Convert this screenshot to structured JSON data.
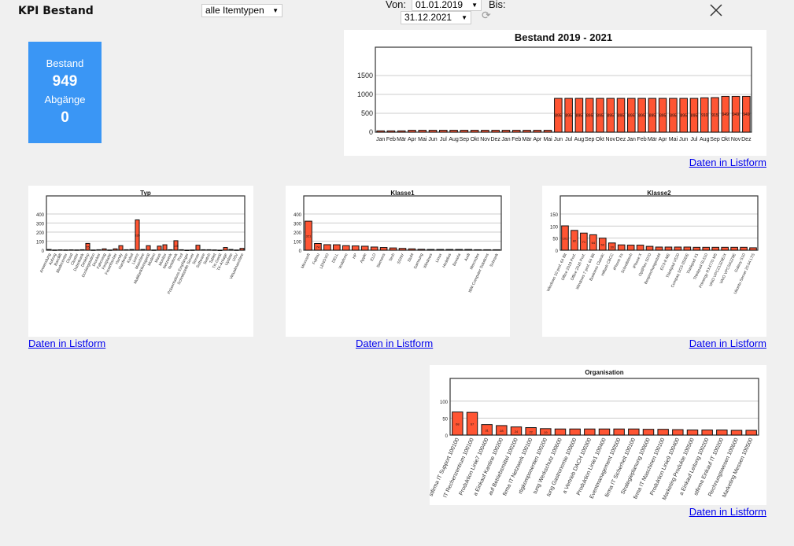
{
  "header": {
    "title": "KPI Bestand",
    "item_type_select": "alle Itemtypen",
    "from_label": "Von:",
    "from_date": "01.01.2019",
    "to_label": "Bis:",
    "to_date": "31.12.2021",
    "refresh_icon": "refresh-icon",
    "close_icon": "close-icon"
  },
  "kpi": {
    "stock_label": "Bestand",
    "stock_value": "949",
    "disposals_label": "Abgänge",
    "disposals_value": "0"
  },
  "links": {
    "list_form": "Daten in Listform"
  },
  "colors": {
    "bar": "#ff5533",
    "tile": "#3a96f5"
  },
  "chart_data": [
    {
      "id": "bestand",
      "type": "bar",
      "title": "Bestand 2019 - 2021",
      "ylim": [
        0,
        2250
      ],
      "yticks": [
        0,
        500,
        1000,
        1500
      ],
      "categories": [
        "Jan",
        "Feb",
        "Mär",
        "Apr",
        "Mai",
        "Jun",
        "Jul",
        "Aug",
        "Sep",
        "Okt",
        "Nov",
        "Dez",
        "Jan",
        "Feb",
        "Mär",
        "Apr",
        "Mai",
        "Jun",
        "Jul",
        "Aug",
        "Sep",
        "Okt",
        "Nov",
        "Dez",
        "Jan",
        "Feb",
        "Mär",
        "Apr",
        "Mai",
        "Jun",
        "Jul",
        "Aug",
        "Sep",
        "Okt",
        "Nov",
        "Dez"
      ],
      "values": [
        35,
        35,
        35,
        50,
        50,
        50,
        50,
        50,
        50,
        50,
        50,
        50,
        50,
        50,
        50,
        50,
        50,
        895,
        895,
        895,
        895,
        895,
        895,
        895,
        895,
        895,
        895,
        895,
        895,
        895,
        895,
        910,
        915,
        949,
        949,
        949
      ],
      "grid": true
    },
    {
      "id": "typ",
      "type": "bar",
      "title": "Typ",
      "ylim": [
        0,
        600
      ],
      "yticks": [
        0,
        100,
        200,
        300,
        400
      ],
      "categories": [
        "Anwendung",
        "Aufzug",
        "Bandlift",
        "Bladecenter",
        "Cloud",
        "Cluster",
        "Datenbank",
        "Desktop",
        "Dockingstation",
        "Drucker",
        "Fahrzeug",
        "Festplatte",
        "Feuerlöscher",
        "Handy",
        "Hardware",
        "Kabel",
        "Lizenz",
        "Maschine",
        "Multifunktionsgerät",
        "Modem",
        "Maus",
        "Monitor",
        "Netzwerk",
        "Notebook",
        "Pool",
        "Präsentations Empfänger",
        "Schnittstelle Server",
        "Server",
        "Software",
        "Switch",
        "Tablet",
        "TK-Gerät",
        "TK-Anlage",
        "Update",
        "USV",
        "Virtualmaschine"
      ],
      "values": [
        8,
        2,
        4,
        3,
        4,
        3,
        5,
        75,
        2,
        5,
        15,
        2,
        15,
        50,
        5,
        8,
        335,
        8,
        50,
        2,
        45,
        60,
        5,
        105,
        5,
        0,
        2,
        55,
        5,
        5,
        3,
        0,
        30,
        8,
        2,
        20
      ],
      "grid": true
    },
    {
      "id": "klasse1",
      "type": "bar",
      "title": "Klasse1",
      "ylim": [
        0,
        600
      ],
      "yticks": [
        0,
        100,
        200,
        300,
        400
      ],
      "categories": [
        "Microsoft",
        "Fujitsu",
        "LENOVO",
        "DELL",
        "Vodafone",
        "HP",
        "Apple",
        "ELO",
        "Siemens",
        "Tech",
        "SONY",
        "Stuhl",
        "Samsung",
        "Windows",
        "Linux",
        "Hedelius",
        "Bavaria",
        "Audi",
        "Mercedes",
        "IBM Computer Solutions",
        "Schrank"
      ],
      "values": [
        321,
        74,
        61,
        60,
        50,
        47,
        44,
        35,
        30,
        25,
        20,
        15,
        10,
        8,
        8,
        8,
        8,
        8,
        5,
        5,
        5
      ],
      "grid": true
    },
    {
      "id": "klasse2",
      "type": "bar",
      "title": "Klasse2",
      "ylim": [
        0,
        225
      ],
      "yticks": [
        0,
        50,
        100,
        150
      ],
      "categories": [
        "Windows 10 prof. 64 Bit",
        "Office 2019 Prof.",
        "Office 2016 Prof.",
        "Windows 7 prof. 64 Bit",
        "Business Classic",
        "Hiflash CBCC",
        "iPhone Xs",
        "Schreibtisch",
        "iPhone X",
        "OptiPlex 5070",
        "Besprechungsstuhl",
        "EC3-8 ME",
        "Thinkpad V520",
        "Compaq SG3-350DE",
        "Thinkpad X1",
        "Thinkpad SL510",
        "Primergy RX4770 M5",
        "VAIO VPCZ13Z9E/X",
        "VAIO VPCSA2Z9E",
        "Galaxy S10",
        "Ubuntu Server 20.04 LTS"
      ],
      "values": [
        101,
        82,
        71,
        64,
        50,
        30,
        22,
        21,
        21,
        16,
        13,
        13,
        13,
        13,
        12,
        12,
        12,
        12,
        12,
        12,
        10
      ],
      "grid": true
    },
    {
      "id": "organisation",
      "type": "bar",
      "title": "Organisation",
      "ylim": [
        0,
        167
      ],
      "yticks": [
        0,
        50,
        100
      ],
      "categories": [
        "stfirma IT Support 100100",
        "IT Rechenzentrum 100100",
        "Produktion Linie7 100400",
        "a Einkauf Kantine 100200",
        "auf Betriebsmittel 100200",
        "firma IT Netzwerk 100100",
        "rtigkomponenten 100200",
        "tung Werkschutz 100600",
        "tung Gastronomie 100600",
        "a Vertrieb DACH 100300",
        "Produktion Linie1 100400",
        "Eventmanagement 100500",
        "firma IT Sicherheit 100100",
        "Strategieplanung 100600",
        "firma IT Maschinen 100100",
        "Produktion Linie9 100400",
        "Marketing Produkte 100500",
        "a Einkauf Leitung 100200",
        "stfirma Einkauf IT 100200",
        "Rechnungswesen 100600",
        "Marketing Messen 100500"
      ],
      "values": [
        68,
        67,
        31,
        28,
        24,
        22,
        19,
        18,
        18,
        18,
        18,
        18,
        18,
        17,
        17,
        16,
        15,
        15,
        15,
        14,
        14
      ],
      "grid": true
    }
  ]
}
